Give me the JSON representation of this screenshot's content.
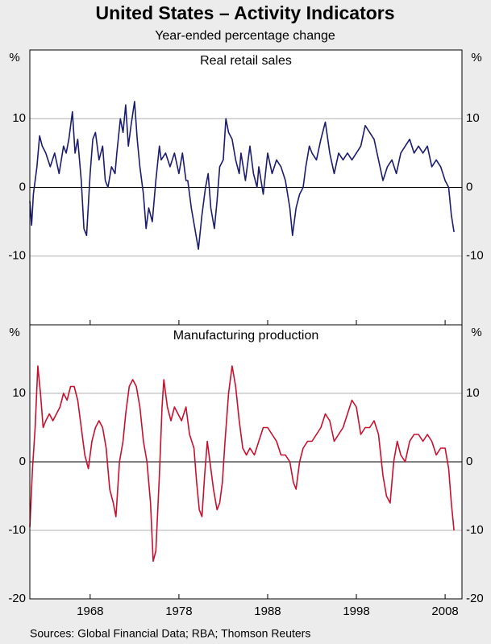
{
  "title": "United States – Activity Indicators",
  "subtitle": "Year-ended percentage change",
  "source": "Sources: Global Financial Data; RBA; Thomson Reuters",
  "chart_data": [
    {
      "type": "line",
      "title": "Real retail sales",
      "y_unit": "%",
      "xlim": [
        1961.2,
        2009.9
      ],
      "xticks": [
        1968,
        1978,
        1988,
        1998,
        2008
      ],
      "ylim": [
        -20,
        20
      ],
      "yticks": [
        -10,
        0,
        10
      ],
      "grid": true,
      "x": [
        1961.2,
        1961.4,
        1961.6,
        1962.0,
        1962.3,
        1962.6,
        1963.0,
        1963.5,
        1964.0,
        1964.5,
        1965.0,
        1965.3,
        1965.6,
        1966.0,
        1966.3,
        1966.6,
        1967.0,
        1967.3,
        1967.6,
        1968.0,
        1968.3,
        1968.6,
        1969.0,
        1969.4,
        1969.7,
        1970.0,
        1970.4,
        1970.8,
        1971.0,
        1971.4,
        1971.7,
        1972.0,
        1972.3,
        1972.6,
        1973.0,
        1973.3,
        1973.6,
        1974.0,
        1974.3,
        1974.6,
        1975.0,
        1975.4,
        1975.8,
        1976.0,
        1976.5,
        1977.0,
        1977.5,
        1978.0,
        1978.4,
        1978.8,
        1979.0,
        1979.4,
        1979.8,
        1980.2,
        1980.6,
        1981.0,
        1981.3,
        1981.6,
        1982.0,
        1982.3,
        1982.6,
        1983.0,
        1983.3,
        1983.6,
        1984.0,
        1984.4,
        1984.8,
        1985.0,
        1985.5,
        1986.0,
        1986.4,
        1986.8,
        1987.0,
        1987.5,
        1988.0,
        1988.5,
        1989.0,
        1989.5,
        1990.0,
        1990.5,
        1990.8,
        1991.2,
        1991.6,
        1992.0,
        1992.3,
        1992.7,
        1993.0,
        1993.5,
        1994.0,
        1994.5,
        1995.0,
        1995.5,
        1996.0,
        1996.5,
        1997.0,
        1997.5,
        1998.0,
        1998.5,
        1999.0,
        1999.5,
        2000.0,
        2000.5,
        2001.0,
        2001.5,
        2002.0,
        2002.5,
        2003.0,
        2003.5,
        2004.0,
        2004.5,
        2005.0,
        2005.5,
        2006.0,
        2006.5,
        2007.0,
        2007.5,
        2008.0,
        2008.4,
        2008.7,
        2009.0
      ],
      "series": [
        {
          "color": "#1c1c6e",
          "values": [
            -2,
            -5.5,
            -1,
            3,
            7.5,
            6,
            5,
            3,
            5,
            2,
            6,
            5,
            7,
            11,
            5,
            7,
            1,
            -6,
            -7,
            2,
            7,
            8,
            4,
            6,
            1,
            0,
            3,
            2,
            5,
            10,
            8,
            12,
            6,
            9,
            12.5,
            7,
            3,
            -1,
            -6,
            -3,
            -5,
            1,
            6,
            4,
            5,
            3,
            5,
            2,
            5,
            1,
            1,
            -3,
            -6,
            -9,
            -4,
            0,
            2,
            -3,
            -6,
            -2,
            3,
            4,
            10,
            8,
            7,
            4,
            2,
            5,
            1,
            6,
            2,
            0,
            3,
            -1,
            5,
            2,
            4,
            3,
            1,
            -3,
            -7,
            -3,
            -1,
            0,
            3,
            6,
            5,
            4,
            7,
            9.5,
            5,
            2,
            5,
            4,
            5,
            4,
            5,
            6,
            9,
            8,
            7,
            4,
            1,
            3,
            4,
            2,
            5,
            6,
            7,
            5,
            6,
            5,
            6,
            3,
            4,
            3,
            1,
            0,
            -4,
            -6.5
          ]
        }
      ]
    },
    {
      "type": "line",
      "title": "Manufacturing production",
      "y_unit": "%",
      "xlim": [
        1961.2,
        2009.9
      ],
      "xticks": [
        1968,
        1978,
        1988,
        1998,
        2008
      ],
      "ylim": [
        -20,
        20
      ],
      "yticks": [
        -20,
        -10,
        0,
        10
      ],
      "grid": true,
      "x": [
        1961.2,
        1961.5,
        1961.8,
        1962.1,
        1962.4,
        1962.7,
        1963.0,
        1963.4,
        1963.8,
        1964.2,
        1964.6,
        1965.0,
        1965.4,
        1965.8,
        1966.2,
        1966.6,
        1967.0,
        1967.4,
        1967.8,
        1968.2,
        1968.6,
        1969.0,
        1969.4,
        1969.8,
        1970.2,
        1970.6,
        1970.9,
        1971.3,
        1971.7,
        1972.0,
        1972.4,
        1972.8,
        1973.2,
        1973.6,
        1974.0,
        1974.4,
        1974.8,
        1975.1,
        1975.4,
        1975.8,
        1976.1,
        1976.3,
        1976.7,
        1977.1,
        1977.5,
        1977.9,
        1978.3,
        1978.8,
        1979.2,
        1979.7,
        1980.0,
        1980.3,
        1980.6,
        1980.9,
        1981.2,
        1981.5,
        1981.9,
        1982.3,
        1982.6,
        1982.9,
        1983.2,
        1983.6,
        1984.0,
        1984.4,
        1984.8,
        1985.2,
        1985.6,
        1986.0,
        1986.5,
        1987.0,
        1987.5,
        1988.0,
        1988.5,
        1989.0,
        1989.5,
        1990.0,
        1990.5,
        1990.9,
        1991.2,
        1991.6,
        1992.0,
        1992.5,
        1993.0,
        1993.5,
        1994.0,
        1994.5,
        1995.0,
        1995.5,
        1996.0,
        1996.5,
        1997.0,
        1997.5,
        1998.0,
        1998.5,
        1999.0,
        1999.5,
        2000.0,
        2000.5,
        2001.0,
        2001.4,
        2001.8,
        2002.2,
        2002.6,
        2003.0,
        2003.5,
        2004.0,
        2004.5,
        2005.0,
        2005.5,
        2006.0,
        2006.5,
        2007.0,
        2007.5,
        2008.0,
        2008.4,
        2008.7,
        2009.0
      ],
      "series": [
        {
          "color": "#c8102e",
          "values": [
            -9.5,
            -1,
            5,
            14,
            10,
            5,
            6,
            7,
            6,
            7,
            8,
            10,
            9,
            11,
            11,
            9,
            5,
            1,
            -1,
            3,
            5,
            6,
            5,
            2,
            -4,
            -6,
            -8,
            0,
            3,
            7,
            11,
            12,
            11,
            8,
            3,
            0,
            -6,
            -14.5,
            -13,
            -2,
            8,
            12,
            8,
            6,
            8,
            7,
            6,
            8,
            4,
            2,
            -3,
            -7,
            -8,
            -2,
            3,
            0,
            -4,
            -7,
            -6,
            -3,
            3,
            10,
            14,
            11,
            6,
            2,
            1,
            2,
            1,
            3,
            5,
            5,
            4,
            3,
            1,
            1,
            0,
            -3,
            -4,
            0,
            2,
            3,
            3,
            4,
            5,
            7,
            6,
            3,
            4,
            5,
            7,
            9,
            8,
            4,
            5,
            5,
            6,
            4,
            -2,
            -5,
            -6,
            0,
            3,
            1,
            0,
            3,
            4,
            4,
            3,
            4,
            3,
            1,
            2,
            2,
            -1,
            -6,
            -10
          ]
        }
      ]
    }
  ]
}
